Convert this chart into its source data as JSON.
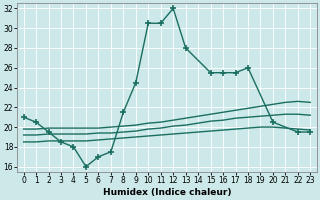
{
  "title": "",
  "xlabel": "Humidex (Indice chaleur)",
  "xlim": [
    -0.5,
    23.5
  ],
  "ylim": [
    15.5,
    32.5
  ],
  "yticks": [
    16,
    18,
    20,
    22,
    24,
    26,
    28,
    30,
    32
  ],
  "xticks": [
    0,
    1,
    2,
    3,
    4,
    5,
    6,
    7,
    8,
    9,
    10,
    11,
    12,
    13,
    14,
    15,
    16,
    17,
    18,
    19,
    20,
    21,
    22,
    23
  ],
  "bg_color": "#cce8e8",
  "line_color": "#1a6e60",
  "lines": [
    {
      "x": [
        0,
        1,
        2,
        3,
        4,
        5,
        6,
        7,
        8,
        9,
        10,
        11,
        12,
        13,
        15,
        16,
        17,
        18,
        20,
        22,
        23
      ],
      "y": [
        21.0,
        20.5,
        19.5,
        18.5,
        18.0,
        16.0,
        17.0,
        17.5,
        21.5,
        24.5,
        30.5,
        30.5,
        32.0,
        28.0,
        25.5,
        25.5,
        25.5,
        26.0,
        20.5,
        19.5,
        19.5
      ],
      "has_markers": true
    },
    {
      "x": [
        0,
        1,
        2,
        3,
        4,
        5,
        6,
        7,
        8,
        9,
        10,
        11,
        12,
        13,
        14,
        15,
        16,
        17,
        18,
        19,
        20,
        21,
        22,
        23
      ],
      "y": [
        19.8,
        19.8,
        19.9,
        19.9,
        19.9,
        19.9,
        19.9,
        20.0,
        20.1,
        20.2,
        20.4,
        20.5,
        20.7,
        20.9,
        21.1,
        21.3,
        21.5,
        21.7,
        21.9,
        22.1,
        22.3,
        22.5,
        22.6,
        22.5
      ],
      "has_markers": false
    },
    {
      "x": [
        0,
        1,
        2,
        3,
        4,
        5,
        6,
        7,
        8,
        9,
        10,
        11,
        12,
        13,
        14,
        15,
        16,
        17,
        18,
        19,
        20,
        21,
        22,
        23
      ],
      "y": [
        19.2,
        19.2,
        19.3,
        19.3,
        19.3,
        19.3,
        19.4,
        19.4,
        19.5,
        19.6,
        19.8,
        19.9,
        20.1,
        20.2,
        20.4,
        20.6,
        20.7,
        20.9,
        21.0,
        21.1,
        21.2,
        21.3,
        21.3,
        21.2
      ],
      "has_markers": false
    },
    {
      "x": [
        0,
        1,
        2,
        3,
        4,
        5,
        6,
        7,
        8,
        9,
        10,
        11,
        12,
        13,
        14,
        15,
        16,
        17,
        18,
        19,
        20,
        21,
        22,
        23
      ],
      "y": [
        18.5,
        18.5,
        18.6,
        18.6,
        18.6,
        18.6,
        18.7,
        18.8,
        18.9,
        19.0,
        19.1,
        19.2,
        19.3,
        19.4,
        19.5,
        19.6,
        19.7,
        19.8,
        19.9,
        20.0,
        20.0,
        19.9,
        19.8,
        19.7
      ],
      "has_markers": false
    }
  ],
  "marker": "+",
  "markersize": 4,
  "markeredgewidth": 1.2,
  "linewidth": 1.0
}
